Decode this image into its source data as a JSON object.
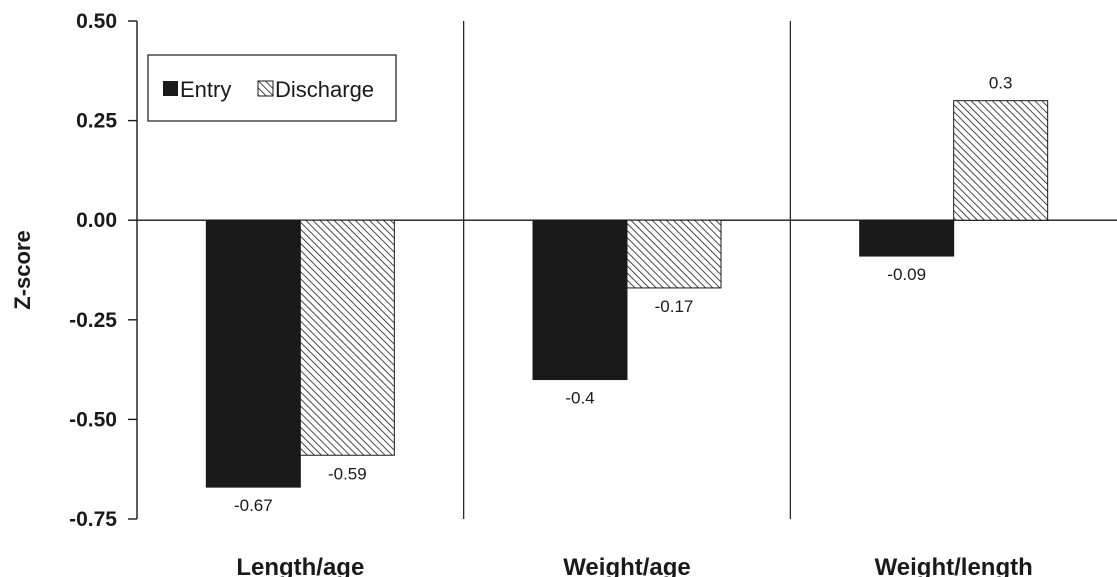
{
  "chart_data": {
    "type": "bar",
    "ylabel": "Z-score",
    "xlabel": "",
    "ylim": [
      -0.75,
      0.5
    ],
    "yticks": [
      0.5,
      0.25,
      0.0,
      -0.25,
      -0.5,
      -0.75
    ],
    "ytick_labels": [
      "0.50",
      "0.25",
      "0.00",
      "-0.25",
      "-0.50",
      "-0.75"
    ],
    "categories": [
      "Length/age",
      "Weight/age",
      "Weight/length"
    ],
    "series": [
      {
        "name": "Entry",
        "values": [
          -0.67,
          -0.4,
          -0.09
        ],
        "labels": [
          "-0.67",
          "-0.4",
          "-0.09"
        ],
        "color": "#1a1a1a",
        "pattern": "solid"
      },
      {
        "name": "Discharge",
        "values": [
          -0.59,
          -0.17,
          0.3
        ],
        "labels": [
          "-0.59",
          "-0.17",
          "0.3"
        ],
        "color": "#1a1a1a",
        "pattern": "diagonal-hatch"
      }
    ],
    "legend": {
      "position": "top-left",
      "entries": [
        "Entry",
        "Discharge"
      ]
    },
    "grid": {
      "vertical_separators": true,
      "horizontal": false
    }
  }
}
